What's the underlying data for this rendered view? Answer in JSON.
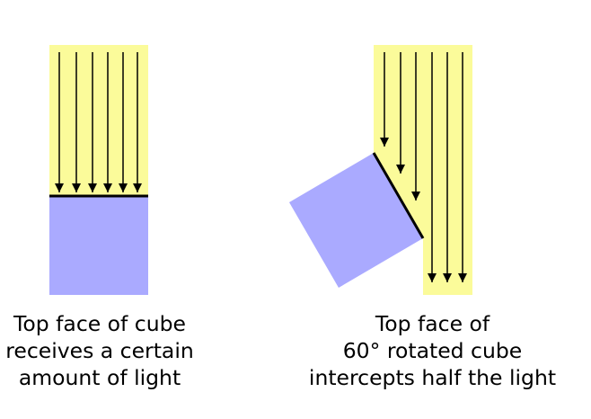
{
  "colors": {
    "light_beam": "#FBFB9A",
    "cube_face": "#AAAAFF",
    "ray_stroke": "#000000"
  },
  "left_panel": {
    "caption_lines": [
      "Top face of cube",
      "receives a certain",
      "amount of light"
    ]
  },
  "right_panel": {
    "caption_lines": [
      "Top face of",
      "60° rotated cube",
      "intercepts half the light"
    ]
  }
}
